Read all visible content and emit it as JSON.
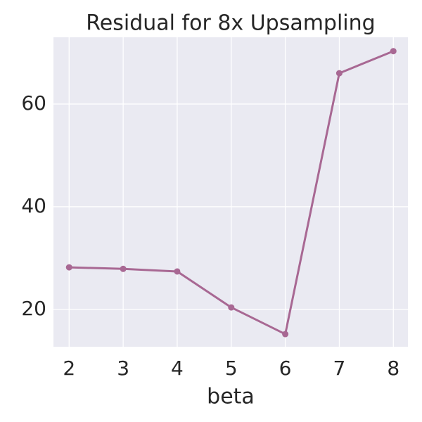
{
  "chart_data": {
    "type": "line",
    "title": "Residual for 8x Upsampling",
    "x_label": "beta",
    "x": [
      2,
      3,
      4,
      5,
      6,
      7,
      8
    ],
    "series": [
      {
        "name": "Residual",
        "color": "#a86893",
        "values": [
          28.2,
          27.9,
          27.4,
          20.4,
          15.2,
          66.0,
          70.3
        ]
      }
    ],
    "xlim": [
      1.71,
      8.27
    ],
    "xticks": [
      2,
      3,
      4,
      5,
      6,
      7,
      8
    ],
    "ylim": [
      12.74,
      73.0
    ],
    "yticks": [
      20,
      40,
      60
    ],
    "grid": true
  }
}
